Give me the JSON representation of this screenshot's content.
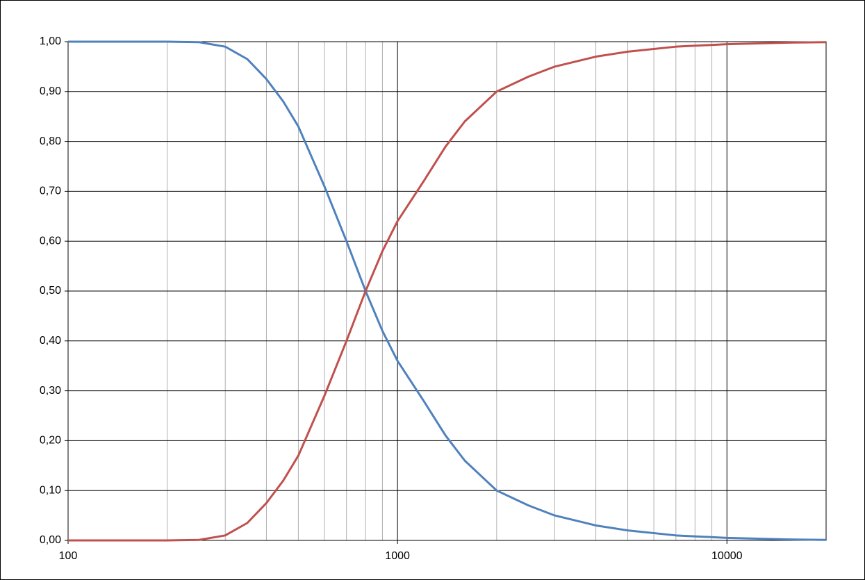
{
  "chart_data": {
    "type": "line",
    "x": [
      100,
      150,
      200,
      250,
      300,
      350,
      400,
      450,
      500,
      600,
      700,
      800,
      900,
      1000,
      1200,
      1400,
      1600,
      2000,
      2500,
      3000,
      4000,
      5000,
      7000,
      10000,
      15000,
      20000
    ],
    "series": [
      {
        "color": "#4f81bd",
        "values": [
          1,
          1,
          1,
          0.999,
          0.99,
          0.965,
          0.925,
          0.88,
          0.83,
          0.71,
          0.6,
          0.5,
          0.42,
          0.36,
          0.28,
          0.21,
          0.16,
          0.1,
          0.07,
          0.05,
          0.03,
          0.02,
          0.01,
          0.005,
          0.002,
          0.001
        ]
      },
      {
        "color": "#c0504d",
        "values": [
          0,
          0,
          0,
          0.001,
          0.01,
          0.035,
          0.075,
          0.12,
          0.17,
          0.29,
          0.4,
          0.5,
          0.58,
          0.64,
          0.72,
          0.79,
          0.84,
          0.9,
          0.93,
          0.95,
          0.97,
          0.98,
          0.99,
          0.995,
          0.998,
          0.999
        ]
      }
    ],
    "xlog": true,
    "xlim": [
      100,
      20000
    ],
    "xticks": [
      100,
      1000,
      10000
    ],
    "xminorticks": [
      200,
      300,
      400,
      500,
      600,
      700,
      800,
      900,
      2000,
      3000,
      4000,
      5000,
      6000,
      7000,
      8000,
      9000
    ],
    "ylim": [
      0,
      1
    ],
    "yticks": [
      {
        "value": 0,
        "label": "0,00"
      },
      {
        "value": 0.1,
        "label": "0,10"
      },
      {
        "value": 0.2,
        "label": "0,20"
      },
      {
        "value": 0.3,
        "label": "0,30"
      },
      {
        "value": 0.4,
        "label": "0,40"
      },
      {
        "value": 0.5,
        "label": "0,50"
      },
      {
        "value": 0.6,
        "label": "0,60"
      },
      {
        "value": 0.7,
        "label": "0,70"
      },
      {
        "value": 0.8,
        "label": "0,80"
      },
      {
        "value": 0.9,
        "label": "0,90"
      },
      {
        "value": 1,
        "label": "1,00"
      }
    ],
    "grid": true
  }
}
